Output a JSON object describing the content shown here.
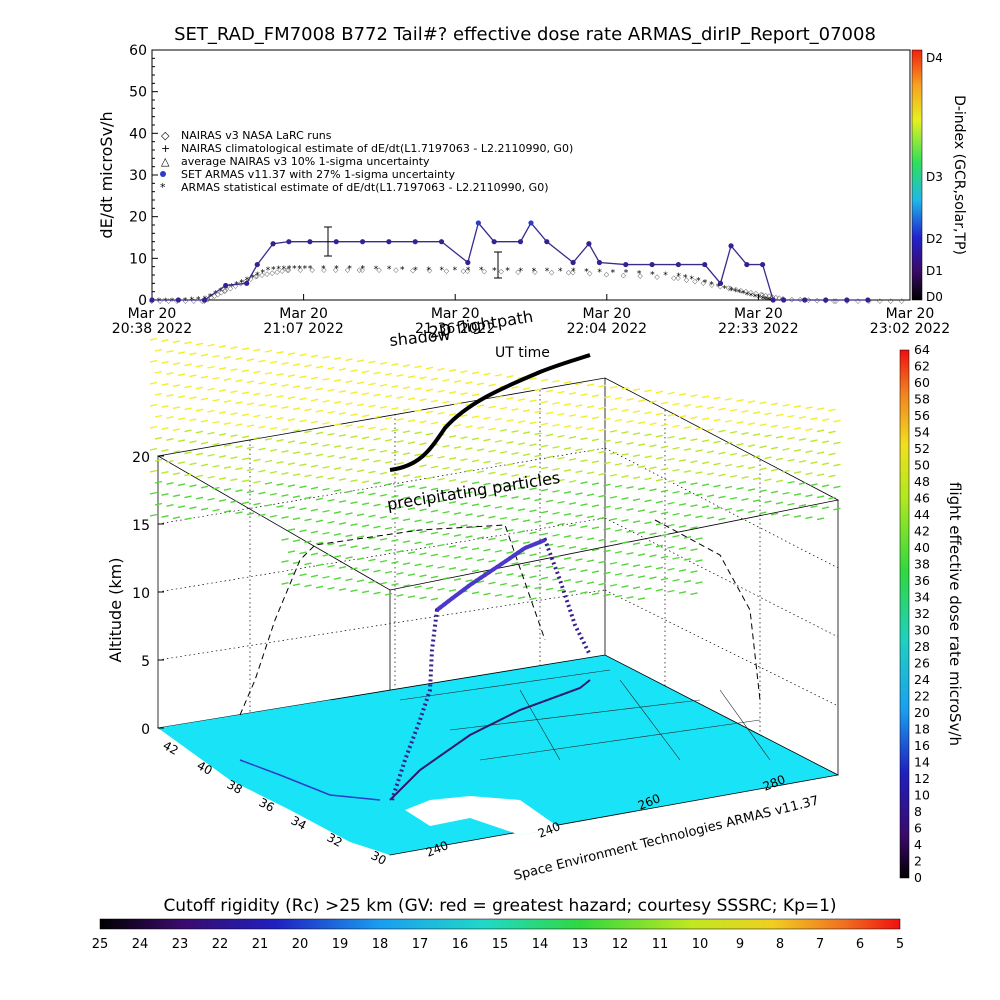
{
  "top_chart": {
    "title": "SET_RAD_FM7008  B772 Tail#? effective dose rate ARMAS_dirIP_Report_07008",
    "ylabel": "dE/dt microSv/h",
    "right_axis_label": "D-index (GCR,solar,TP)",
    "legend": [
      "NAIRAS v3 NASA LaRC runs",
      "NAIRAS climatological estimate of dE/dt(L1.7197063 - L2.2110990, G0)",
      "average NAIRAS v3 10% 1-sigma uncertainty",
      "SET ARMAS v11.37 with 27% 1-sigma uncertainty",
      "ARMAS statistical estimate of dE/dt(L1.7197063 - L2.2110990, G0)"
    ],
    "x_ticks": [
      {
        "line1": "Mar 20",
        "line2": "20:38 2022"
      },
      {
        "line1": "Mar 20",
        "line2": "21:07 2022"
      },
      {
        "line1": "Mar 20",
        "line2": "21:36 2022"
      },
      {
        "line1": "Mar 20",
        "line2": "22:04 2022"
      },
      {
        "line1": "Mar 20",
        "line2": "22:33 2022"
      },
      {
        "line1": "Mar 20",
        "line2": "23:02 2022"
      }
    ],
    "d_index_labels": [
      "D4",
      "D3",
      "D2",
      "D1",
      "D0"
    ]
  },
  "chart_data": [
    {
      "type": "scatter",
      "title": "SET_RAD_FM7008  B772 Tail#? effective dose rate ARMAS_dirIP_Report_07008",
      "ylabel": "dE/dt microSv/h",
      "ylim": [
        0,
        60
      ],
      "yticks": [
        0,
        10,
        20,
        30,
        40,
        50,
        60
      ],
      "xlim": [
        "Mar 20 20:38 2022",
        "Mar 20 23:02 2022"
      ],
      "series": [
        {
          "name": "SET ARMAS v11.37 with 27% 1-sigma uncertainty",
          "color": "#2a3cc8",
          "x_minutes_after_start": [
            0,
            5,
            10,
            14,
            18,
            20,
            23,
            26,
            30,
            35,
            40,
            45,
            50,
            55,
            60,
            62,
            65,
            70,
            72,
            75,
            80,
            83,
            85,
            90,
            95,
            100,
            105,
            108,
            110,
            113,
            116,
            118,
            120,
            124,
            128,
            132,
            136
          ],
          "values": [
            0,
            0,
            0,
            3.5,
            4,
            8.5,
            13.5,
            14,
            14,
            14,
            14,
            14,
            14,
            14,
            9,
            18.5,
            14,
            14,
            18.5,
            14,
            9,
            13.5,
            9,
            8.5,
            8.5,
            8.5,
            8.5,
            4,
            13,
            8.5,
            8.5,
            0,
            0,
            0,
            0,
            0,
            0
          ]
        },
        {
          "name": "ARMAS statistical estimate of dE/dt(L1.7197063 - L2.2110990, G0)",
          "color": "#000000",
          "x_minutes_after_start": [
            0,
            5,
            10,
            14,
            18,
            22,
            26,
            30,
            40,
            50,
            60,
            70,
            80,
            90,
            100,
            105,
            110,
            113,
            116,
            118
          ],
          "values": [
            0,
            0,
            0.5,
            3,
            5,
            7.5,
            7.8,
            7.8,
            7.8,
            7.5,
            7.5,
            7.2,
            7.2,
            6.8,
            6.0,
            4.5,
            2.5,
            1.5,
            0.5,
            0
          ]
        },
        {
          "name": "NAIRAS v3 NASA LaRC runs",
          "color": "#000000",
          "x_minutes_after_start": [
            0,
            10,
            14,
            20,
            26,
            40,
            60,
            80,
            100,
            110,
            116,
            120,
            130,
            143
          ],
          "values": [
            0,
            0,
            2.5,
            6,
            7.5,
            7.5,
            7.2,
            6.8,
            5.5,
            3,
            1.5,
            0.5,
            0,
            0
          ]
        }
      ]
    },
    {
      "type": "scatter",
      "title": "",
      "ylabel": "Altitude (km)",
      "zlim": [
        0,
        20
      ],
      "zticks": [
        0,
        5,
        10,
        15,
        20
      ],
      "latitude_ticks": [
        30,
        32,
        34,
        36,
        38,
        40,
        42
      ],
      "longitude_ticks": [
        240,
        240,
        260,
        280
      ],
      "colorbar": {
        "label": "flight effective dose rate microSv/h",
        "ticks": [
          0,
          2,
          4,
          6,
          8,
          10,
          12,
          14,
          16,
          18,
          20,
          22,
          24,
          26,
          28,
          30,
          32,
          34,
          36,
          38,
          40,
          42,
          44,
          46,
          48,
          50,
          52,
          54,
          56,
          58,
          60,
          62,
          64
        ]
      },
      "annotations": [
        "shadow",
        "2D flightpath",
        "UT time",
        "precipitating particles"
      ],
      "credit": "Space Environment Technologies ARMAS v11.37"
    },
    {
      "type": "heatmap",
      "title": "Cutoff rigidity (Rc) >25 km (GV: red = greatest hazard; courtesy SSSRC; Kp=1)",
      "colorbar_ticks": [
        25,
        24,
        23,
        22,
        21,
        20,
        19,
        18,
        17,
        16,
        15,
        14,
        13,
        12,
        11,
        10,
        9,
        8,
        7,
        6,
        5
      ]
    }
  ],
  "colors": {
    "sea": "#19e3f6",
    "land": "#ffffff",
    "flight_low": "#2b1a6e",
    "flight_mid": "#4a2fb0",
    "particles_yellow": "#f4f01a",
    "particles_green": "#4fd63a"
  },
  "bottom_caption": "Cutoff rigidity (Rc) >25 km (GV: red = greatest hazard; courtesy SSSRC; Kp=1)",
  "credit_text": "Space Environment Technologies ARMAS v11.37",
  "annot_shadow": "shadow",
  "annot_flightpath": "2D flightpath",
  "annot_ut": "UT time",
  "annot_particles": "precipitating particles",
  "alt_label": "Altitude (km)",
  "dose_label": "flight effective dose rate microSv/h"
}
